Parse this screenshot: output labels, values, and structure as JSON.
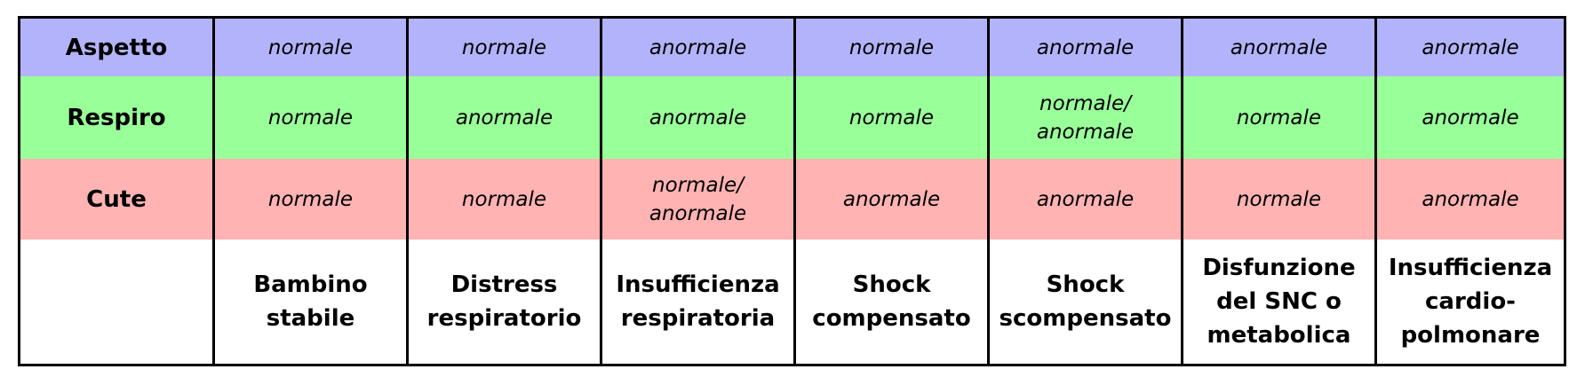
{
  "table": {
    "rows": [
      {
        "label": "Aspetto",
        "cells": [
          "normale",
          "normale",
          "anormale",
          "normale",
          "anormale",
          "anormale",
          "anormale"
        ]
      },
      {
        "label": "Respiro",
        "cells": [
          "normale",
          "anormale",
          "anormale",
          "normale",
          "normale/\nanormale",
          "normale",
          "anormale"
        ]
      },
      {
        "label": "Cute",
        "cells": [
          "normale",
          "normale",
          "normale/\nanormale",
          "anormale",
          "anormale",
          "normale",
          "anormale"
        ]
      }
    ],
    "outcomes": [
      "Bambino\nstabile",
      "Distress\nrespiratorio",
      "Insufficienza\nrespiratoria",
      "Shock\ncompensato",
      "Shock\nscompensato",
      "Disfunzione\ndel SNC o\nmetabolica",
      "Insufficienza\ncardio-\npolmonare"
    ]
  },
  "colors": {
    "aspetto_row": "#b3b3fb",
    "respiro_row": "#99ff99",
    "cute_row": "#ffb3b3",
    "outcome_row": "#ffffff",
    "border": "#000000"
  }
}
